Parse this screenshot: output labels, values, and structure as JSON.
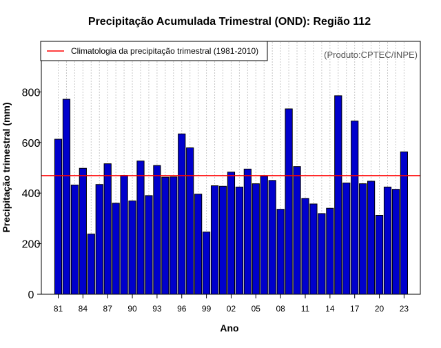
{
  "chart_data": {
    "type": "bar",
    "title": "Precipitação Acumulada Trimestral (OND): Região 112",
    "xlabel": "Ano",
    "ylabel": "Precipitação trimestral (mm)",
    "credit": "(Produto:CPTEC/INPE)",
    "ylim": [
      0,
      1000
    ],
    "yticks": [
      0,
      200,
      400,
      600,
      800
    ],
    "categories": [
      "81",
      "82",
      "83",
      "84",
      "85",
      "86",
      "87",
      "88",
      "89",
      "90",
      "91",
      "92",
      "93",
      "94",
      "95",
      "96",
      "97",
      "98",
      "99",
      "00",
      "01",
      "02",
      "03",
      "04",
      "05",
      "06",
      "07",
      "08",
      "09",
      "10",
      "11",
      "12",
      "13",
      "14",
      "15",
      "16",
      "17",
      "18",
      "19",
      "20",
      "21",
      "22",
      "23"
    ],
    "xtick_labels": [
      "81",
      "84",
      "87",
      "90",
      "93",
      "96",
      "99",
      "02",
      "05",
      "08",
      "11",
      "14",
      "17",
      "20",
      "23"
    ],
    "xtick_indices": [
      0,
      3,
      6,
      9,
      12,
      15,
      18,
      21,
      24,
      27,
      30,
      33,
      36,
      39,
      42
    ],
    "series": [
      {
        "name": "Precipitação trimestral",
        "color": "#0000cc",
        "values": [
          613,
          771,
          432,
          498,
          238,
          434,
          516,
          360,
          470,
          369,
          527,
          390,
          509,
          463,
          464,
          634,
          579,
          396,
          246,
          429,
          427,
          483,
          424,
          495,
          437,
          467,
          450,
          336,
          733,
          505,
          379,
          357,
          319,
          340,
          785,
          440,
          685,
          437,
          447,
          312,
          424,
          415,
          563
        ]
      }
    ],
    "climatology": {
      "label": "Climatologia da precipitação trimestral (1981-2010)",
      "value": 469,
      "color": "#ff0000"
    },
    "grid": true,
    "legend_position": "top-left"
  }
}
